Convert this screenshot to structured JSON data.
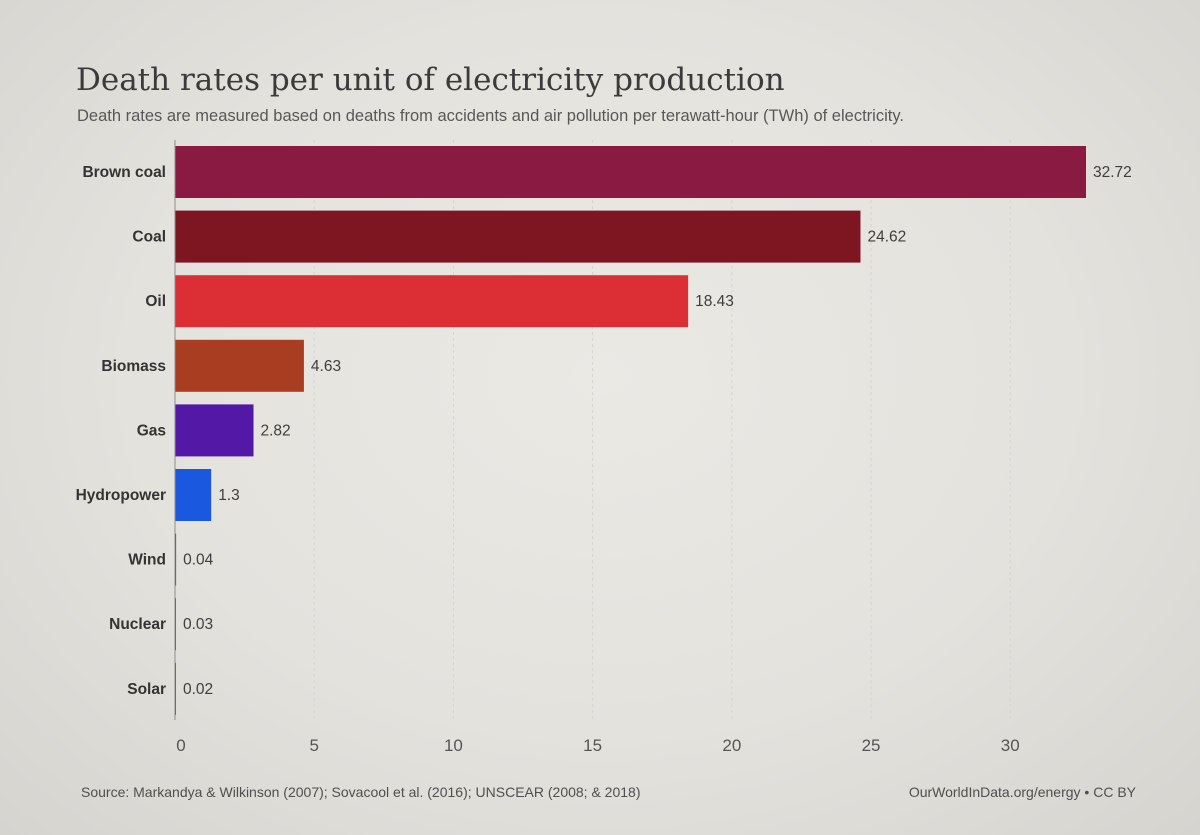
{
  "chart_data": {
    "type": "bar",
    "orientation": "horizontal",
    "title": "Death rates per unit of electricity production",
    "subtitle": "Death rates are measured based on deaths from accidents and air pollution per terawatt-hour (TWh) of electricity.",
    "categories": [
      "Brown coal",
      "Coal",
      "Oil",
      "Biomass",
      "Gas",
      "Hydropower",
      "Wind",
      "Nuclear",
      "Solar"
    ],
    "values": [
      32.72,
      24.62,
      18.43,
      4.63,
      2.82,
      1.3,
      0.04,
      0.03,
      0.02
    ],
    "value_labels": [
      "32.72",
      "24.62",
      "18.43",
      "4.63",
      "2.82",
      "1.3",
      "0.04",
      "0.03",
      "0.02"
    ],
    "colors": [
      "#8a1a42",
      "#7e1622",
      "#dc2f35",
      "#a83d22",
      "#5418a6",
      "#1a58e0",
      "#4a4a4a",
      "#4a4a4a",
      "#4a4a4a"
    ],
    "xticks": [
      0,
      5,
      10,
      15,
      20,
      25,
      30
    ],
    "xtick_labels": [
      "0",
      "5",
      "10",
      "15",
      "20",
      "25",
      "30"
    ],
    "xlim": [
      0,
      32.72
    ],
    "grid": true,
    "source": "Source: Markandya & Wilkinson (2007); Sovacool et al. (2016); UNSCEAR (2008; & 2018)",
    "credit": "OurWorldInData.org/energy • CC BY"
  }
}
